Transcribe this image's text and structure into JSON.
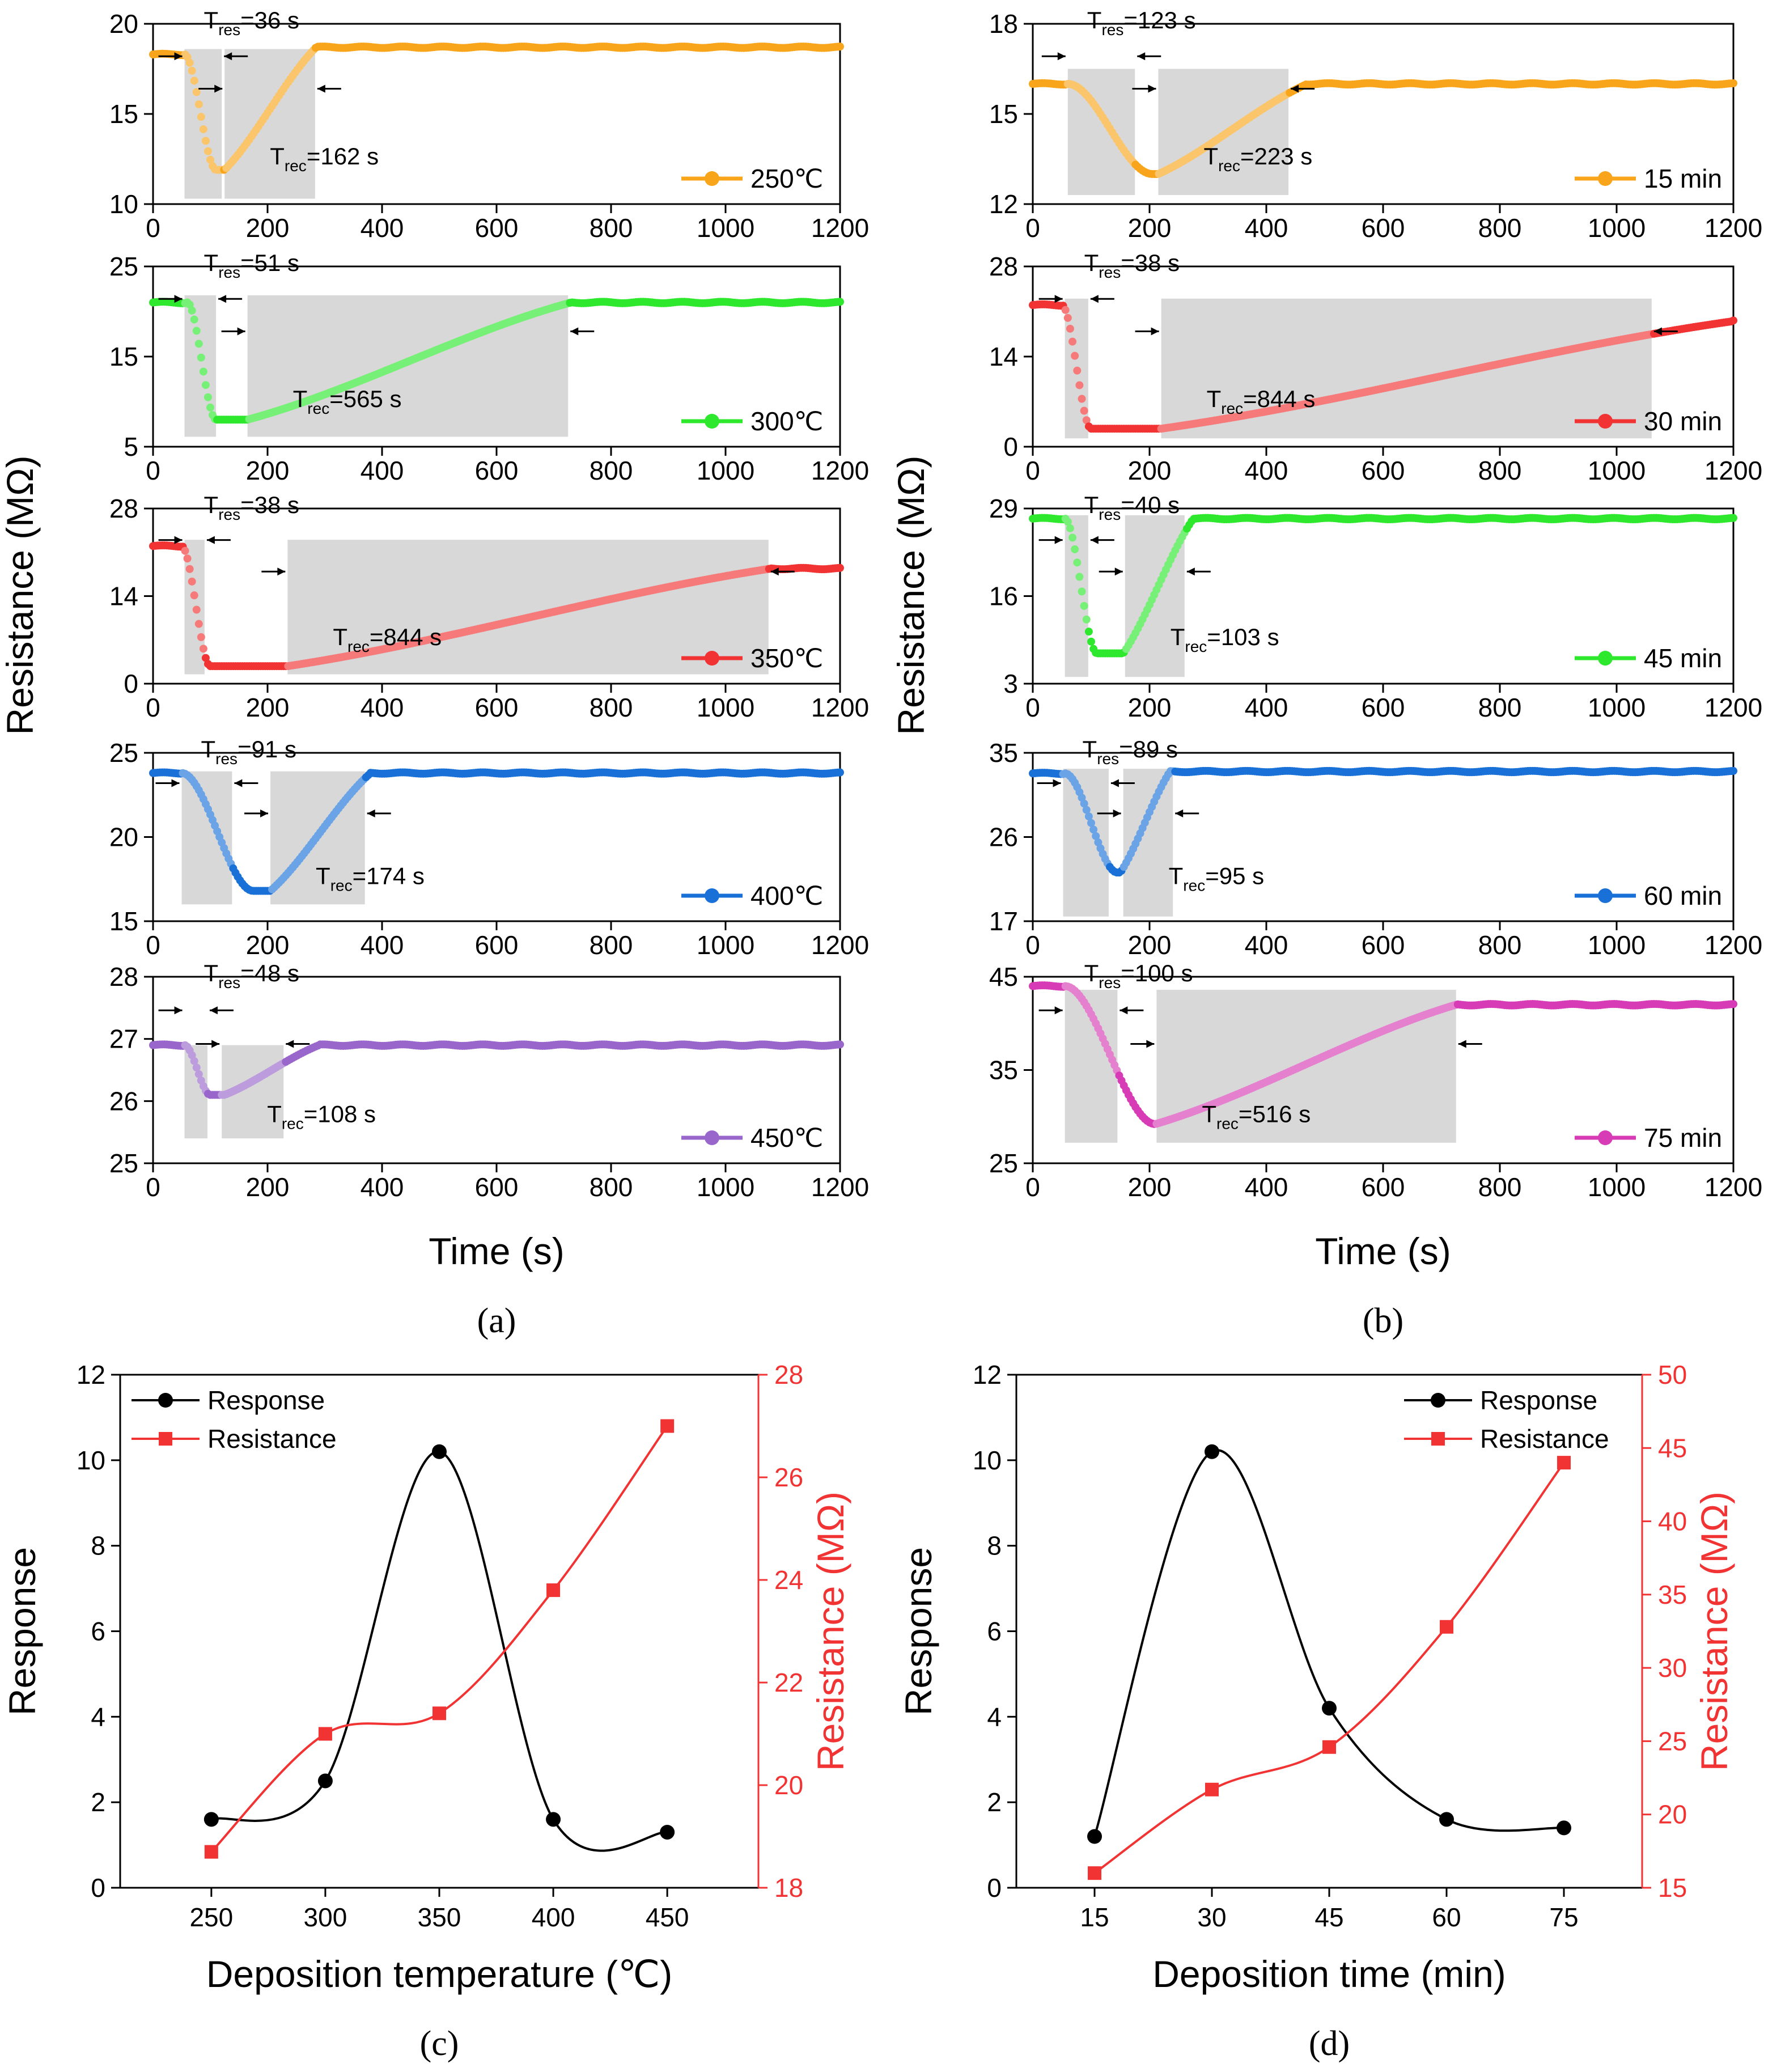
{
  "figure": {
    "panel_labels": [
      "a",
      "b",
      "c",
      "d"
    ]
  },
  "shared": {
    "x_ticks": [
      "0",
      "200",
      "400",
      "600",
      "800",
      "1000",
      "1200"
    ],
    "time_label": "Time (s)",
    "resistance_label": "Resistance (MΩ)"
  },
  "colors": {
    "orange": "#F9A51B",
    "green": "#2EE82E",
    "red": "#F13333",
    "blue": "#1971D8",
    "purple": "#9966CC",
    "magenta": "#D73BB5",
    "black": "#000000",
    "shade": "#D8D8D8"
  },
  "chart_data": [
    {
      "panel": "a",
      "type": "line",
      "xlabel": "Time (s)",
      "ylabel": "Resistance (MΩ)",
      "xlim": [
        0,
        1200
      ],
      "subplots": [
        {
          "legend": "250℃",
          "color": "orange",
          "ylim": [
            10,
            20
          ],
          "yticks": [
            "10",
            "15",
            "20"
          ],
          "baseline": 18.3,
          "final": 18.7,
          "min": 11.9,
          "t_gas_on": 55,
          "t_min": 110,
          "t_off": 125,
          "t_end": 285,
          "tres_label": "=36 s",
          "trec_label": "=162 s",
          "shade": [
            [
              55,
              120,
              10.3,
              18.6
            ],
            [
              125,
              283,
              10.3,
              18.6
            ]
          ]
        },
        {
          "legend": "300℃",
          "color": "green",
          "ylim": [
            5,
            25
          ],
          "yticks": [
            "5",
            "15",
            "25"
          ],
          "baseline": 21.0,
          "final": 21.0,
          "min": 8.0,
          "t_gas_on": 60,
          "t_min": 110,
          "t_off": 165,
          "t_end": 730,
          "tres_label": "=51 s",
          "trec_label": "=565 s",
          "shade": [
            [
              55,
              110,
              6.1,
              21.8
            ],
            [
              165,
              725,
              6.1,
              21.8
            ]
          ]
        },
        {
          "legend": "350℃",
          "color": "red",
          "ylim": [
            0,
            28
          ],
          "yticks": [
            "0",
            "14",
            "28"
          ],
          "baseline": 22.0,
          "final": 18.4,
          "min": 2.8,
          "t_gas_on": 50,
          "t_min": 100,
          "t_off": 235,
          "t_end": 1080,
          "tres_label": "=38 s",
          "trec_label": "=844 s",
          "shade": [
            [
              55,
              90,
              1.5,
              23.0
            ],
            [
              235,
              1075,
              1.5,
              23.0
            ]
          ]
        },
        {
          "legend": "400℃",
          "color": "blue",
          "ylim": [
            15,
            25
          ],
          "yticks": [
            "15",
            "20",
            "25"
          ],
          "baseline": 23.8,
          "final": 23.8,
          "min": 16.8,
          "t_gas_on": 50,
          "t_min": 175,
          "t_off": 205,
          "t_end": 380,
          "tres_label": "=91 s",
          "trec_label": "=174 s",
          "shade": [
            [
              50,
              138,
              16.0,
              23.9
            ],
            [
              205,
              370,
              16.0,
              23.9
            ]
          ]
        },
        {
          "legend": "450℃",
          "color": "purple",
          "ylim": [
            25,
            28
          ],
          "yticks": [
            "25",
            "26",
            "27",
            "28"
          ],
          "baseline": 26.9,
          "final": 26.9,
          "min": 26.1,
          "t_gas_on": 55,
          "t_min": 100,
          "t_off": 125,
          "t_end": 290,
          "tres_label": "=48 s",
          "trec_label": "=108 s",
          "shade": [
            [
              55,
              95,
              25.4,
              26.9
            ],
            [
              120,
              228,
              25.4,
              26.9
            ]
          ]
        }
      ]
    },
    {
      "panel": "b",
      "type": "line",
      "xlabel": "Time (s)",
      "ylabel": "Resistance (MΩ)",
      "xlim": [
        0,
        1200
      ],
      "subplots": [
        {
          "legend": "15 min",
          "color": "orange",
          "ylim": [
            12,
            18
          ],
          "yticks": [
            "12",
            "15",
            "18"
          ],
          "baseline": 16.0,
          "final": 16.0,
          "min": 13.0,
          "t_gas_on": 60,
          "t_min": 205,
          "t_off": 215,
          "t_end": 470,
          "tres_label": "=123 s",
          "trec_label": "=223 s",
          "shade": [
            [
              60,
              175,
              12.3,
              16.5
            ],
            [
              215,
              438,
              12.3,
              16.5
            ]
          ]
        },
        {
          "legend": "30 min",
          "color": "red",
          "ylim": [
            0,
            28
          ],
          "yticks": [
            "0",
            "14",
            "28"
          ],
          "baseline": 22.0,
          "final": 19.5,
          "min": 2.8,
          "t_gas_on": 50,
          "t_min": 100,
          "t_off": 220,
          "t_end": 1200,
          "tres_label": "=38 s",
          "trec_label": "=844 s",
          "shade": [
            [
              55,
              95,
              1.3,
              23.0
            ],
            [
              220,
              1060,
              1.3,
              23.0
            ]
          ]
        },
        {
          "legend": "45 min",
          "color": "green",
          "ylim": [
            3,
            29
          ],
          "yticks": [
            "3",
            "16",
            "29"
          ],
          "baseline": 27.5,
          "final": 27.5,
          "min": 7.5,
          "t_gas_on": 55,
          "t_min": 110,
          "t_off": 155,
          "t_end": 275,
          "tres_label": "=40 s",
          "trec_label": "=103 s",
          "shade": [
            [
              55,
              95,
              4.0,
              28.0
            ],
            [
              158,
              260,
              4.0,
              28.0
            ]
          ]
        },
        {
          "legend": "60 min",
          "color": "blue",
          "ylim": [
            17,
            35
          ],
          "yticks": [
            "17",
            "26",
            "35"
          ],
          "baseline": 32.8,
          "final": 33.0,
          "min": 22.2,
          "t_gas_on": 55,
          "t_min": 145,
          "t_off": 150,
          "t_end": 235,
          "tres_label": "=89 s",
          "trec_label": "=95 s",
          "shade": [
            [
              52,
              130,
              17.5,
              33.3
            ],
            [
              155,
              240,
              17.5,
              33.3
            ]
          ]
        },
        {
          "legend": "75 min",
          "color": "magenta",
          "ylim": [
            25,
            45
          ],
          "yticks": [
            "25",
            "35",
            "45"
          ],
          "baseline": 44.0,
          "final": 42.0,
          "min": 29.2,
          "t_gas_on": 55,
          "t_min": 210,
          "t_off": 210,
          "t_end": 725,
          "tres_label": "=100 s",
          "trec_label": "=516 s",
          "shade": [
            [
              55,
              145,
              27.2,
              43.6
            ],
            [
              212,
              725,
              27.2,
              43.6
            ]
          ]
        }
      ]
    },
    {
      "panel": "c",
      "type": "line",
      "xlabel": "Deposition temperature (℃)",
      "ylabel_left": "Response",
      "ylabel_right": "Resistance (MΩ)",
      "x": [
        250,
        300,
        350,
        400,
        450
      ],
      "xlim": [
        210,
        490
      ],
      "ylim_left": [
        0,
        12
      ],
      "ylim_right": [
        18,
        28
      ],
      "xticks": [
        "250",
        "300",
        "350",
        "400",
        "450"
      ],
      "yticks_left": [
        "0",
        "2",
        "4",
        "6",
        "8",
        "10",
        "12"
      ],
      "yticks_right": [
        "18",
        "20",
        "22",
        "24",
        "26",
        "28"
      ],
      "series": [
        {
          "name": "Response",
          "axis": "left",
          "color": "black",
          "marker": "circle",
          "values": [
            1.6,
            2.5,
            10.2,
            1.6,
            1.3
          ]
        },
        {
          "name": "Resistance",
          "axis": "right",
          "color": "red",
          "marker": "square",
          "values": [
            18.7,
            21.0,
            21.4,
            23.8,
            27.0
          ]
        }
      ],
      "legend": "top-left"
    },
    {
      "panel": "d",
      "type": "line",
      "xlabel": "Deposition time (min)",
      "ylabel_left": "Response",
      "ylabel_right": "Resistance (MΩ)",
      "x": [
        15,
        30,
        45,
        60,
        75
      ],
      "xlim": [
        5,
        85
      ],
      "ylim_left": [
        0,
        12
      ],
      "ylim_right": [
        15,
        50
      ],
      "xticks": [
        "15",
        "30",
        "45",
        "60",
        "75"
      ],
      "yticks_left": [
        "0",
        "2",
        "4",
        "6",
        "8",
        "10",
        "12"
      ],
      "yticks_right": [
        "15",
        "20",
        "25",
        "30",
        "35",
        "40",
        "45",
        "50"
      ],
      "series": [
        {
          "name": "Response",
          "axis": "left",
          "color": "black",
          "marker": "circle",
          "values": [
            1.2,
            10.2,
            4.2,
            1.6,
            1.4
          ]
        },
        {
          "name": "Resistance",
          "axis": "right",
          "color": "red",
          "marker": "square",
          "values": [
            16.0,
            21.7,
            24.6,
            32.8,
            44.0
          ]
        }
      ],
      "legend": "top-right"
    }
  ]
}
